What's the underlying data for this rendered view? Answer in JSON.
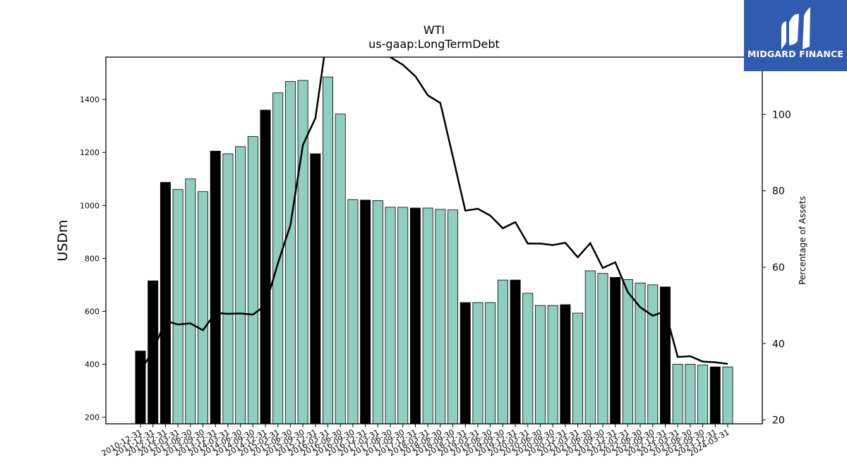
{
  "logo": {
    "text": "MIDGARD FINANCE",
    "bg_color": "#2f5bb0"
  },
  "chart_data": {
    "type": "bar",
    "title": "WTI",
    "subtitle": "us-gaap:LongTermDebt",
    "ylabel": "USDm",
    "y2label": "Percentage of Assets",
    "ylim": [
      175,
      1560
    ],
    "y2lim": [
      19,
      115
    ],
    "yticks": [
      200,
      400,
      600,
      800,
      1000,
      1200,
      1400
    ],
    "y2ticks": [
      20,
      40,
      60,
      80,
      100
    ],
    "grid": false,
    "bar_colors": {
      "annual": "#000000",
      "quarterly": "#8ecfc1"
    },
    "line_color": "#000000",
    "categories": [
      "2010-12-31",
      "2011-12-31",
      "2012-12-31",
      "2013-03-31",
      "2013-06-30",
      "2013-09-30",
      "2013-12-31",
      "2014-03-31",
      "2014-06-30",
      "2014-09-30",
      "2014-12-31",
      "2015-03-31",
      "2015-06-30",
      "2015-09-30",
      "2015-12-31",
      "2016-03-31",
      "2016-06-30",
      "2016-09-30",
      "2016-12-31",
      "2017-03-31",
      "2017-06-30",
      "2017-09-30",
      "2017-12-31",
      "2018-03-31",
      "2018-06-30",
      "2018-09-30",
      "2018-12-31",
      "2019-03-31",
      "2019-06-30",
      "2019-09-30",
      "2019-12-31",
      "2020-03-31",
      "2020-06-30",
      "2020-09-30",
      "2020-12-31",
      "2021-03-31",
      "2021-06-30",
      "2021-09-30",
      "2021-12-31",
      "2022-03-31",
      "2022-06-30",
      "2022-09-30",
      "2022-12-31",
      "2023-03-31",
      "2023-06-30",
      "2023-09-30",
      "2023-12-31",
      "2024-03-31"
    ],
    "series": [
      {
        "kind": "bar",
        "values": [
          450,
          715,
          1087,
          1060,
          1100,
          1052,
          1205,
          1195,
          1222,
          1260,
          1360,
          1425,
          1468,
          1472,
          1195,
          1485,
          1345,
          1022,
          1020,
          1018,
          993,
          993,
          990,
          990,
          985,
          983,
          633,
          633,
          633,
          718,
          718,
          668,
          622,
          622,
          625,
          593,
          753,
          743,
          728,
          720,
          707,
          700,
          692,
          400,
          400,
          397,
          390,
          390
        ],
        "annual": [
          true,
          true,
          true,
          false,
          false,
          false,
          true,
          false,
          false,
          false,
          true,
          false,
          false,
          false,
          true,
          false,
          false,
          false,
          true,
          false,
          false,
          false,
          true,
          false,
          false,
          false,
          true,
          false,
          false,
          false,
          true,
          false,
          false,
          false,
          true,
          false,
          false,
          false,
          true,
          false,
          false,
          false,
          true,
          false,
          false,
          false,
          true,
          false
        ]
      },
      {
        "kind": "line",
        "axis": "right",
        "values": [
          33,
          38,
          46,
          45,
          45.3,
          43.5,
          48,
          47.8,
          47.9,
          47.6,
          50,
          61,
          71,
          92,
          99,
          122,
          125,
          120,
          118,
          117,
          115,
          113,
          110,
          105,
          103,
          89,
          74.8,
          75.3,
          73.5,
          70.2,
          71.8,
          66.2,
          66.2,
          65.8,
          66.4,
          62.6,
          66.3,
          59.8,
          61.3,
          53.5,
          49.5,
          47.3,
          48.5,
          36.5,
          36.7,
          35.3,
          35.1,
          34.7
        ]
      }
    ]
  }
}
